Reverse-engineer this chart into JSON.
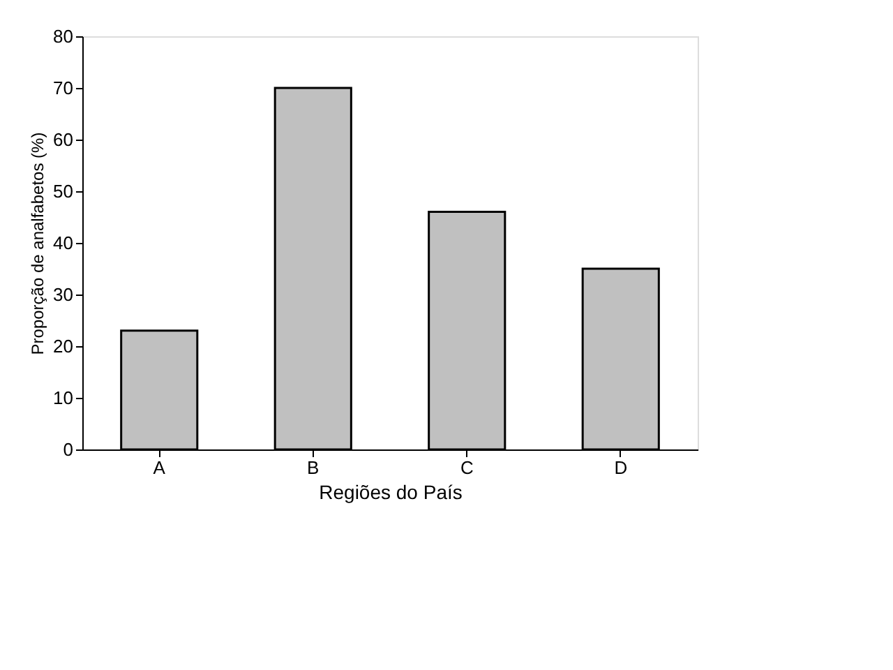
{
  "chart_data": {
    "type": "bar",
    "xlabel": "Regiões do País",
    "ylabel": "Proporção de analfabetos (%)",
    "categories": [
      "A",
      "B",
      "C",
      "D"
    ],
    "values": [
      23,
      70,
      46,
      35
    ],
    "color": "#c0c0c0",
    "ylim": [
      0,
      80
    ],
    "yticks": [
      0,
      10,
      20,
      30,
      40,
      50,
      60,
      70,
      80
    ],
    "grid": false
  }
}
